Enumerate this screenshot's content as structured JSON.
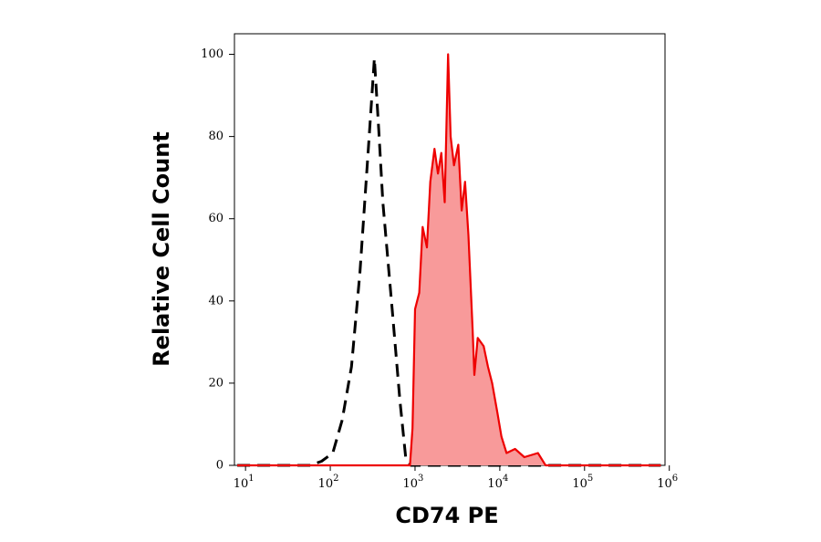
{
  "chart_data": {
    "type": "histogram-overlay",
    "x_label": "CD74 PE",
    "y_label": "Relative Cell Count",
    "xscale": "log",
    "xlim": [
      7.4,
      890000
    ],
    "ylim": [
      0,
      105
    ],
    "xticks": [
      {
        "value": 10,
        "label": "10",
        "exp": "1"
      },
      {
        "value": 100,
        "label": "10",
        "exp": "2"
      },
      {
        "value": 1000,
        "label": "10",
        "exp": "3"
      },
      {
        "value": 10000,
        "label": "10",
        "exp": "4"
      },
      {
        "value": 100000,
        "label": "10",
        "exp": "5"
      },
      {
        "value": 1000000,
        "label": "10",
        "exp": "6"
      }
    ],
    "yticks": [
      0,
      20,
      40,
      60,
      80,
      100
    ],
    "series": [
      {
        "color": "#000000",
        "dash": true,
        "x": [
          8,
          32,
          58,
          79,
          107,
          138,
          178,
          224,
          288,
          331,
          372,
          417,
          537,
          661,
          776,
          891,
          10000,
          100000,
          794000
        ],
        "values": [
          0,
          0,
          0,
          1,
          3,
          11,
          24,
          47,
          80,
          99,
          82,
          64,
          38,
          16,
          2,
          0,
          0,
          0,
          0
        ]
      },
      {
        "color": "#ee0000",
        "fill": "#f89a9a",
        "dash": false,
        "x": [
          8,
          100,
          871,
          933,
          1000,
          1122,
          1230,
          1380,
          1514,
          1698,
          1862,
          2042,
          2239,
          2455,
          2630,
          2884,
          3236,
          3548,
          3890,
          4266,
          4786,
          5012,
          5495,
          6457,
          7244,
          8128,
          9333,
          10471,
          12023,
          15136,
          19498,
          28184,
          34674,
          46774,
          794000
        ],
        "values": [
          0,
          0,
          0,
          9,
          38,
          42,
          58,
          53,
          69,
          77,
          71,
          76,
          64,
          100,
          80,
          73,
          78,
          62,
          69,
          56,
          33,
          22,
          31,
          29,
          24,
          20,
          13,
          7,
          3,
          4,
          2,
          3,
          0,
          0,
          0
        ]
      }
    ]
  }
}
